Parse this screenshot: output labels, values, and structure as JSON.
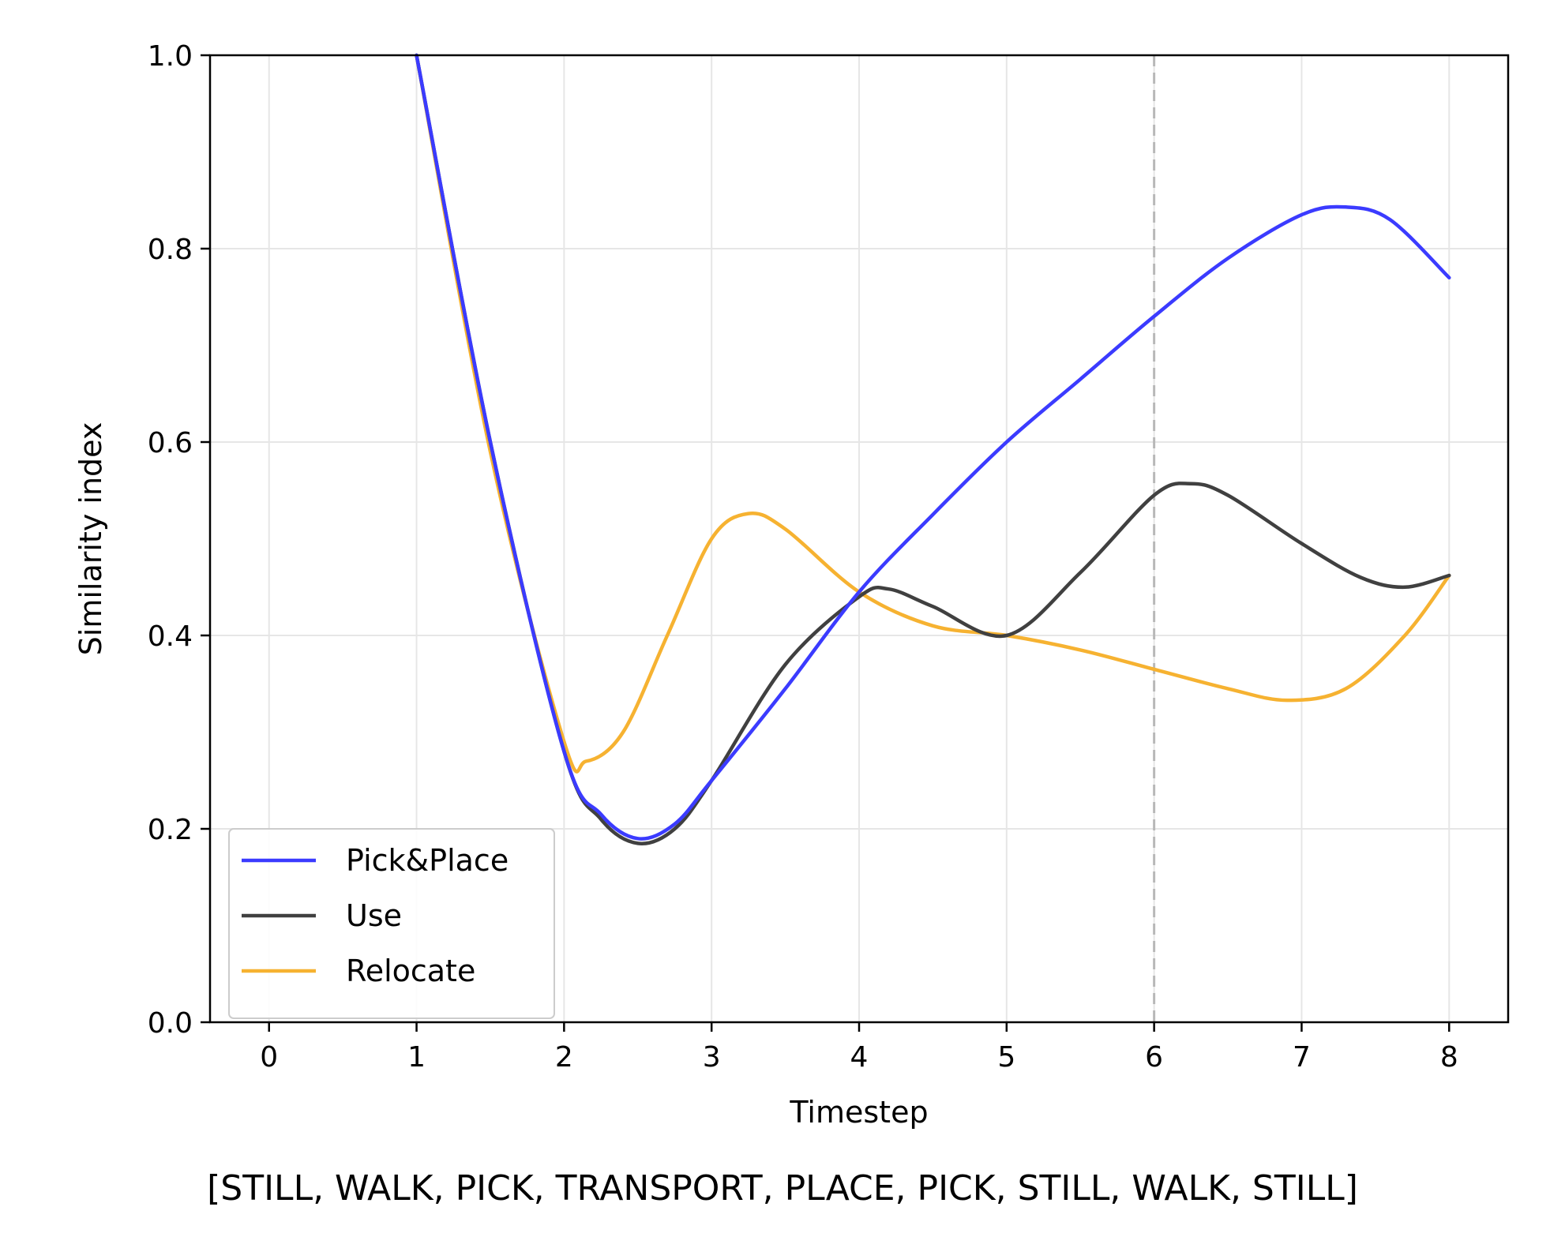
{
  "chart_data": {
    "type": "line",
    "xlabel": "Timestep",
    "ylabel": "Similarity index",
    "xlim": [
      -0.4,
      8.4
    ],
    "ylim": [
      0.0,
      1.0
    ],
    "xticks": [
      0,
      1,
      2,
      3,
      4,
      5,
      6,
      7,
      8
    ],
    "yticks": [
      0.0,
      0.2,
      0.4,
      0.6,
      0.8,
      1.0
    ],
    "xtick_labels": [
      "0",
      "1",
      "2",
      "3",
      "4",
      "5",
      "6",
      "7",
      "8"
    ],
    "ytick_labels": [
      "0.0",
      "0.2",
      "0.4",
      "0.6",
      "0.8",
      "1.0"
    ],
    "grid": true,
    "vline_x": 6,
    "legend_position": "lower-left",
    "series": [
      {
        "name": "Pick&Place",
        "color": "#3b3bff",
        "x": [
          1.0,
          1.5,
          2.0,
          2.25,
          2.5,
          2.75,
          3.0,
          3.5,
          4.0,
          4.5,
          5.0,
          5.5,
          6.0,
          6.5,
          7.0,
          7.3,
          7.6,
          8.0
        ],
        "y": [
          1.0,
          0.6,
          0.28,
          0.215,
          0.19,
          0.205,
          0.25,
          0.345,
          0.445,
          0.525,
          0.6,
          0.665,
          0.73,
          0.79,
          0.835,
          0.843,
          0.83,
          0.77
        ]
      },
      {
        "name": "Use",
        "color": "#404040",
        "x": [
          1.0,
          1.5,
          2.0,
          2.25,
          2.5,
          2.75,
          3.0,
          3.5,
          4.0,
          4.2,
          4.5,
          5.0,
          5.5,
          6.0,
          6.25,
          6.5,
          7.0,
          7.4,
          7.7,
          8.0
        ],
        "y": [
          1.0,
          0.6,
          0.28,
          0.21,
          0.185,
          0.2,
          0.25,
          0.37,
          0.44,
          0.448,
          0.43,
          0.4,
          0.465,
          0.545,
          0.557,
          0.545,
          0.495,
          0.46,
          0.45,
          0.462
        ]
      },
      {
        "name": "Relocate",
        "color": "#f6b231",
        "x": [
          1.0,
          1.5,
          2.0,
          2.15,
          2.4,
          2.7,
          3.0,
          3.25,
          3.5,
          4.0,
          4.5,
          5.0,
          5.5,
          6.0,
          6.5,
          6.9,
          7.3,
          7.7,
          8.0
        ],
        "y": [
          1.0,
          0.59,
          0.29,
          0.27,
          0.3,
          0.4,
          0.5,
          0.526,
          0.51,
          0.445,
          0.41,
          0.4,
          0.385,
          0.365,
          0.345,
          0.333,
          0.345,
          0.4,
          0.462
        ]
      }
    ],
    "caption": "[STILL, WALK, PICK, TRANSPORT, PLACE, PICK, STILL, WALK, STILL]"
  }
}
